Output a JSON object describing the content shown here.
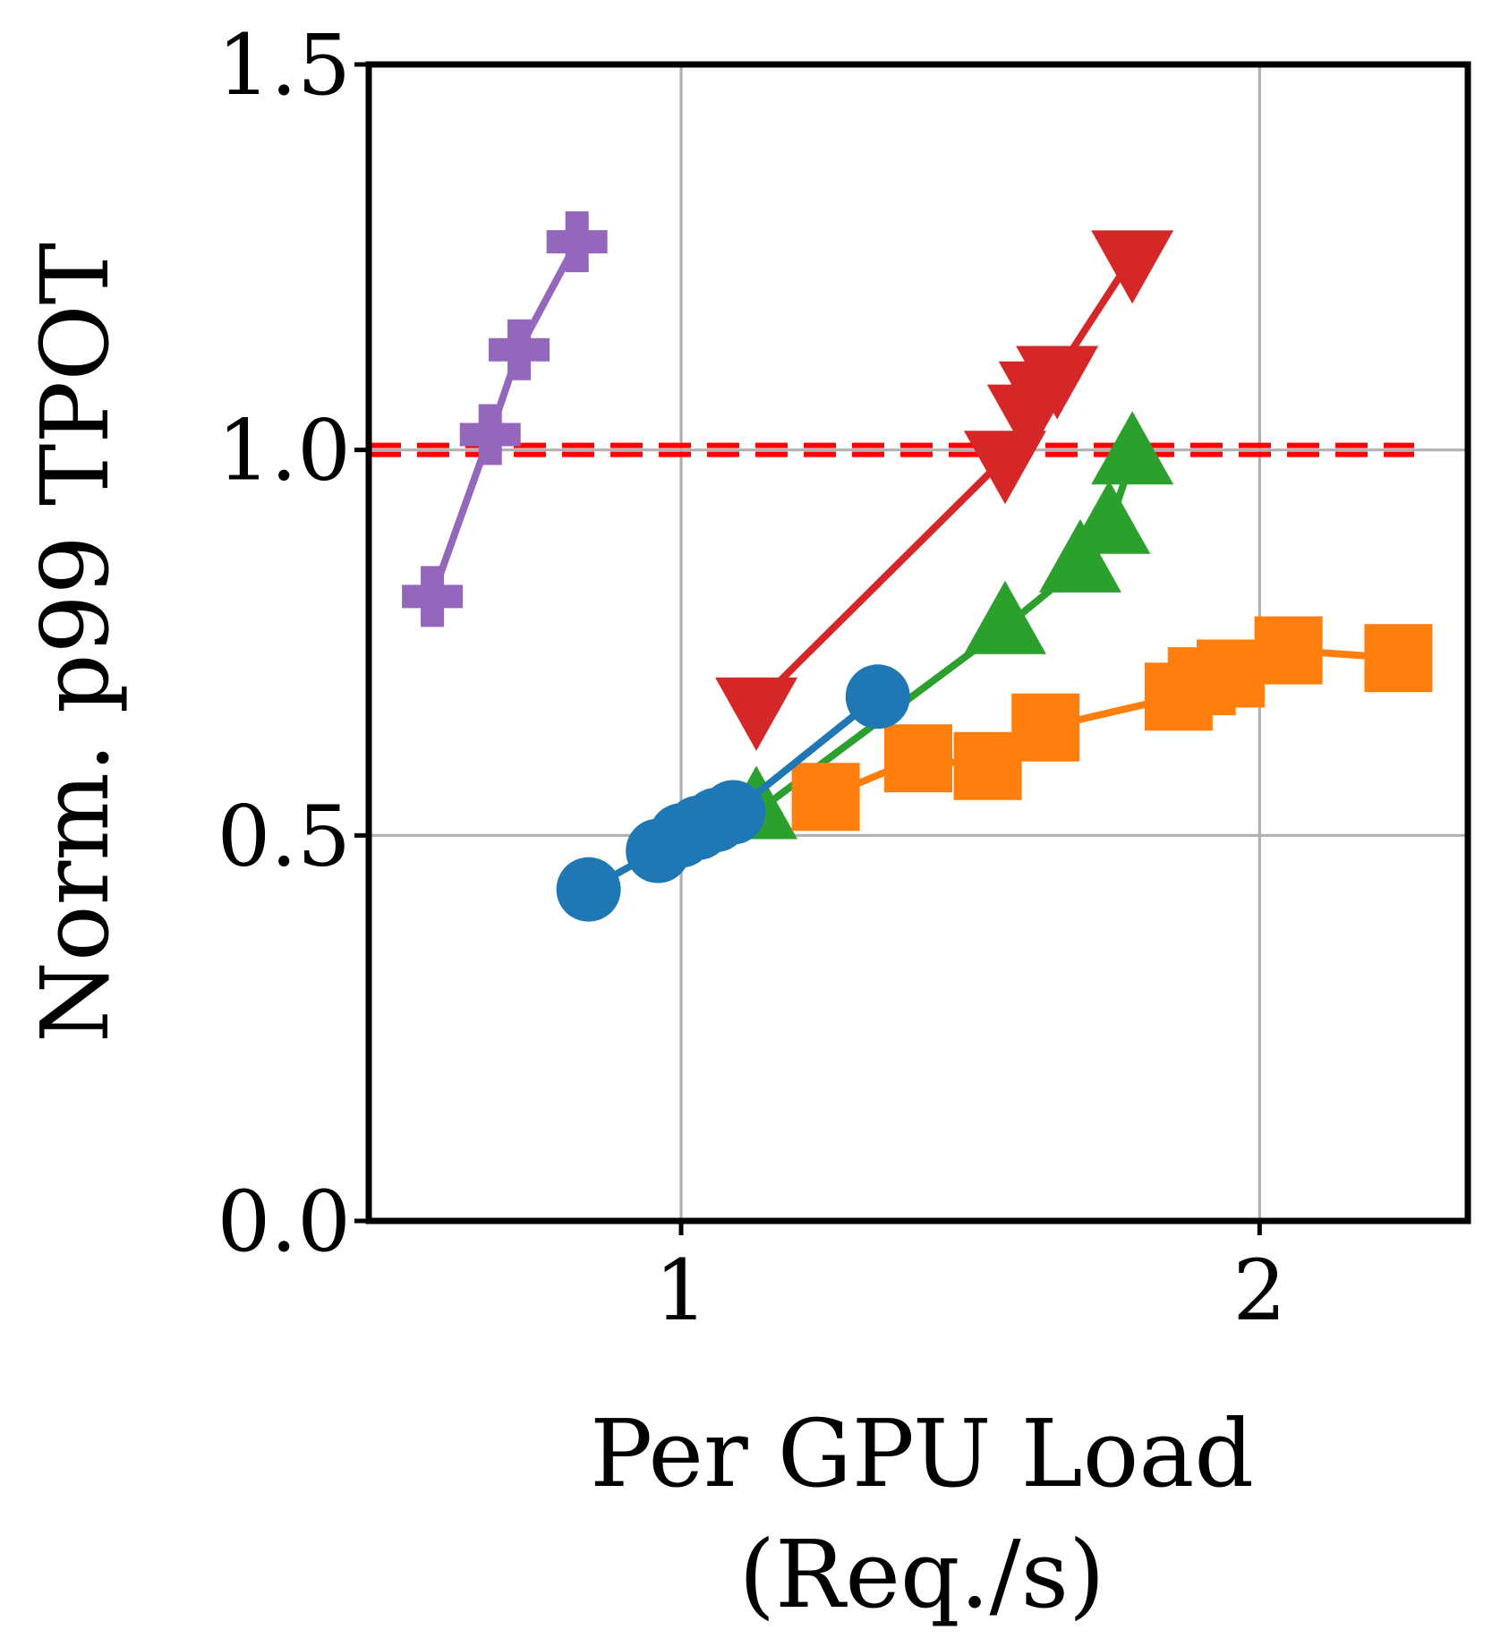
{
  "chart_data": {
    "type": "line",
    "title": "",
    "xlabel_lines": [
      "Per GPU Load",
      "(Req./s)"
    ],
    "ylabel": "Norm. p99 TPOT",
    "xlim": [
      0.46,
      2.36
    ],
    "ylim": [
      0.0,
      1.5
    ],
    "xticks": [
      1,
      2
    ],
    "xtick_labels": [
      "1",
      "2"
    ],
    "yticks": [
      0.0,
      0.5,
      1.0,
      1.5
    ],
    "ytick_labels": [
      "0.0",
      "0.5",
      "1.0",
      "1.5"
    ],
    "grid": true,
    "legend": "none",
    "reference_line": {
      "y": 1.0,
      "style": "dashed",
      "color": "#ff0000"
    },
    "series": [
      {
        "name": "purple-plus",
        "color": "#9467bd",
        "marker": "plus",
        "x": [
          0.57,
          0.67,
          0.72,
          0.82
        ],
        "y": [
          0.81,
          1.02,
          1.13,
          1.27
        ]
      },
      {
        "name": "red-triangle-down",
        "color": "#d62728",
        "marker": "triangle-down",
        "x": [
          1.13,
          1.56,
          1.6,
          1.62,
          1.65,
          1.78
        ],
        "y": [
          0.67,
          0.99,
          1.05,
          1.08,
          1.1,
          1.25
        ]
      },
      {
        "name": "green-triangle-up",
        "color": "#2ca02c",
        "marker": "triangle-up",
        "x": [
          1.13,
          1.56,
          1.69,
          1.74,
          1.78
        ],
        "y": [
          0.53,
          0.77,
          0.85,
          0.9,
          0.99
        ]
      },
      {
        "name": "orange-square",
        "color": "#ff7f0e",
        "marker": "square",
        "x": [
          1.25,
          1.41,
          1.53,
          1.63,
          1.86,
          1.9,
          1.95,
          2.05,
          2.24
        ],
        "y": [
          0.55,
          0.6,
          0.59,
          0.64,
          0.68,
          0.7,
          0.71,
          0.74,
          0.73
        ]
      },
      {
        "name": "blue-circle",
        "color": "#1f77b4",
        "marker": "circle",
        "x": [
          0.84,
          0.96,
          1.0,
          1.03,
          1.06,
          1.09,
          1.34
        ],
        "y": [
          0.43,
          0.48,
          0.5,
          0.51,
          0.52,
          0.53,
          0.68
        ]
      }
    ]
  }
}
